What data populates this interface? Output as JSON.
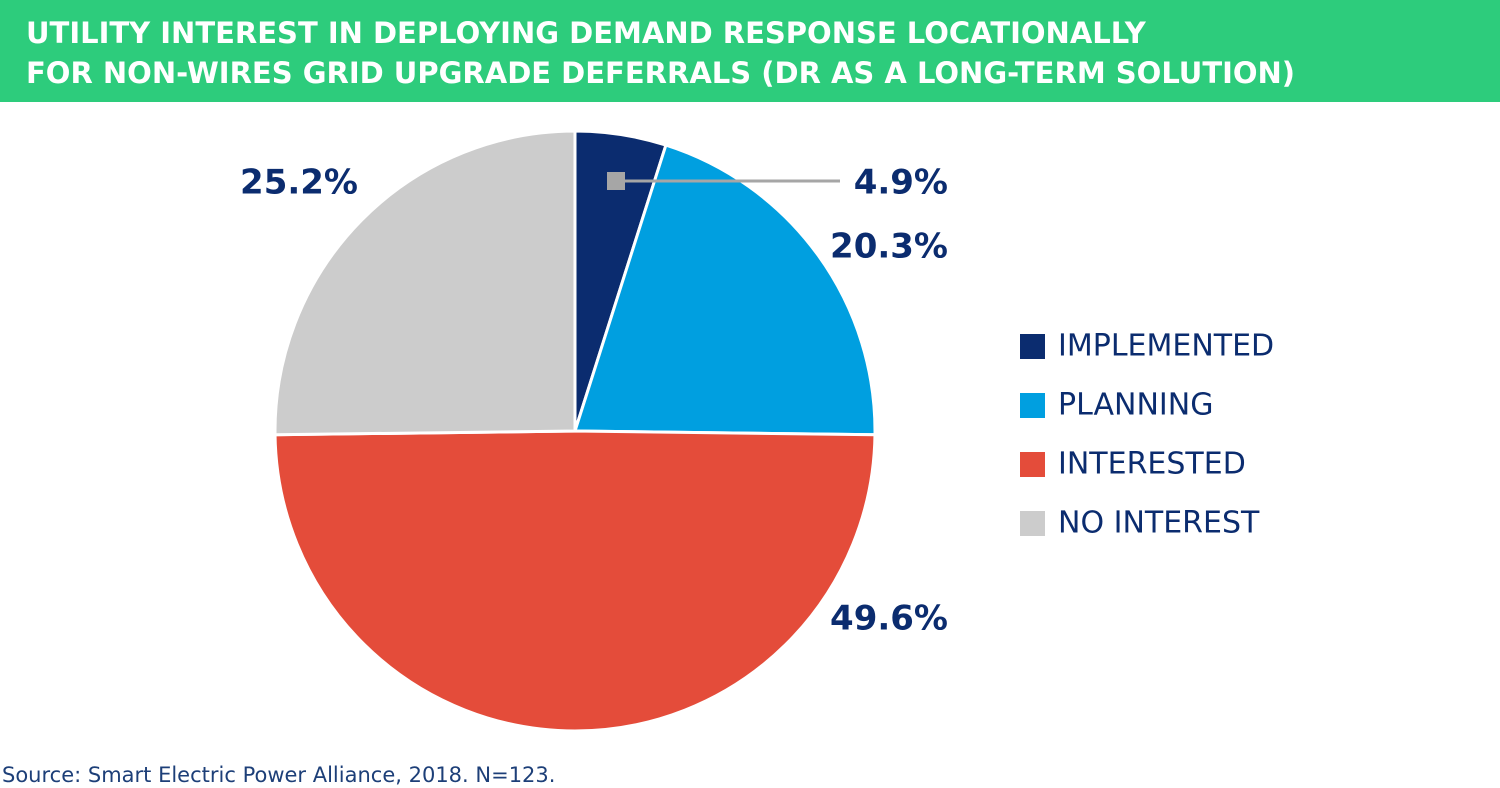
{
  "chart_data": {
    "type": "pie",
    "title": [
      "UTILITY INTEREST IN DEPLOYING DEMAND RESPONSE LOCATIONALLY",
      "FOR NON-WIRES GRID UPGRADE DEFERRALS (DR AS A LONG-TERM SOLUTION)"
    ],
    "categories": [
      "IMPLEMENTED",
      "PLANNING",
      "INTERESTED",
      "NO INTEREST"
    ],
    "values": [
      4.9,
      20.3,
      49.6,
      25.2
    ],
    "value_labels": [
      "4.9%",
      "20.3%",
      "49.6%",
      "25.2%"
    ],
    "colors": [
      "#0b2c6f",
      "#009fe0",
      "#e44c3a",
      "#cccccc"
    ],
    "legend": "right",
    "source": "Source: Smart Electric Power Alliance, 2018. N=123."
  }
}
